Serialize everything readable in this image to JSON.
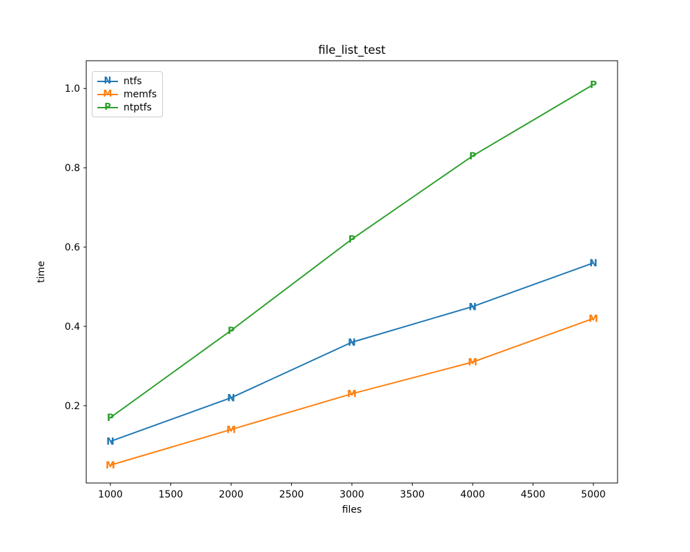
{
  "figure": {
    "background": "#ffffff"
  },
  "chart_data": {
    "type": "line",
    "title": "file_list_test",
    "xlabel": "files",
    "ylabel": "time",
    "x": [
      1000,
      2000,
      3000,
      4000,
      5000
    ],
    "series": [
      {
        "name": "ntfs",
        "marker": "N",
        "color": "#1f77b4",
        "values": [
          0.11,
          0.22,
          0.36,
          0.45,
          0.56
        ]
      },
      {
        "name": "memfs",
        "marker": "M",
        "color": "#ff7f0e",
        "values": [
          0.05,
          0.14,
          0.23,
          0.31,
          0.42
        ]
      },
      {
        "name": "ntptfs",
        "marker": "P",
        "color": "#2ca02c",
        "values": [
          0.17,
          0.39,
          0.62,
          0.83,
          1.01
        ]
      }
    ],
    "x_ticks": [
      1000,
      1500,
      2000,
      2500,
      3000,
      3500,
      4000,
      4500,
      5000
    ],
    "y_ticks": [
      0.2,
      0.4,
      0.6,
      0.8,
      1.0
    ],
    "xlim": [
      800,
      5200
    ],
    "ylim": [
      0.005,
      1.07
    ],
    "grid": false,
    "legend_position": "upper left",
    "axis_color": "#000000",
    "text_color": "#000000"
  }
}
